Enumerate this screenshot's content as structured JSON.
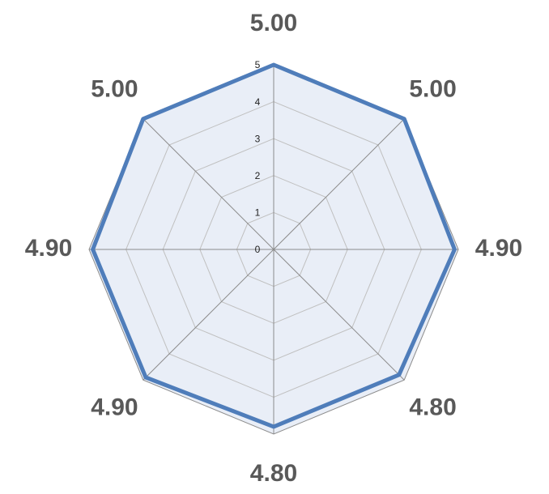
{
  "chart_data": {
    "type": "radar",
    "values": [
      5,
      5,
      4.9,
      4.8,
      4.8,
      4.9,
      4.9,
      5
    ],
    "value_labels": [
      "5.00",
      "5.00",
      "4.90",
      "4.80",
      "4.80",
      "4.90",
      "4.90",
      "5.00"
    ],
    "color": "#4f7dba",
    "ylim": [
      0,
      5
    ],
    "yticks": [
      0,
      1,
      2,
      3,
      4,
      5
    ],
    "grid": true
  }
}
